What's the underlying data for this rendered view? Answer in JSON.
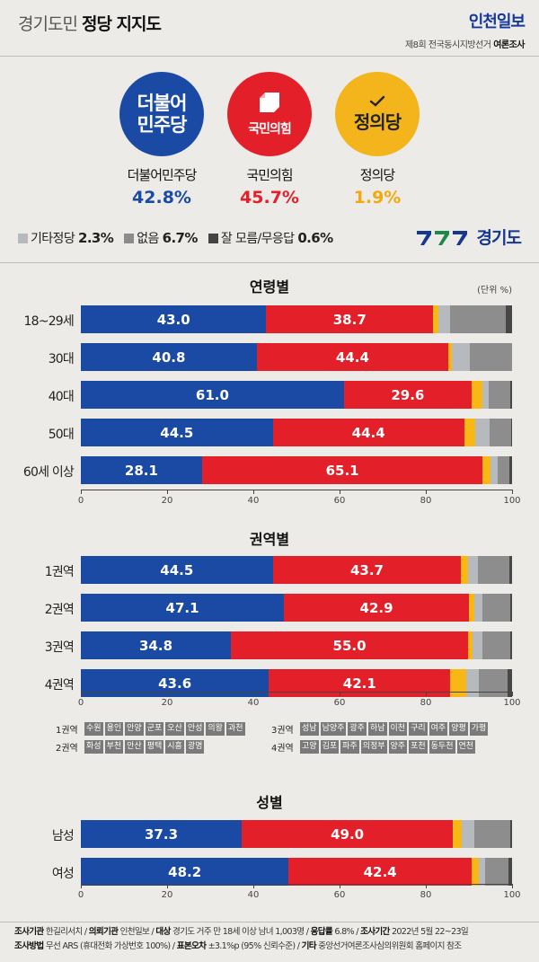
{
  "header": {
    "title_light": "경기도민",
    "title_bold": "정당 지지도",
    "brand": "인천일보",
    "brand_sub": "제8회 전국동시지방선거",
    "brand_sub_bold": "여론조사"
  },
  "parties": [
    {
      "name": "더불어민주당",
      "logo_line1": "더불어",
      "logo_line2": "민주당",
      "value": "42.8%",
      "color": "#1a4aa3"
    },
    {
      "name": "국민의힘",
      "logo_line1": "국민의힘",
      "value": "45.7%",
      "color": "#e3202a"
    },
    {
      "name": "정의당",
      "logo_line1": "정의당",
      "value": "1.9%",
      "color": "#f4b41c"
    }
  ],
  "others": [
    {
      "label": "기타정당",
      "value": "2.3%",
      "color": "#b6b9bd"
    },
    {
      "label": "없음",
      "value": "6.7%",
      "color": "#8c8c8c"
    },
    {
      "label": "잘 모름/무응답",
      "value": "0.6%",
      "color": "#444444"
    }
  ],
  "gg_logo": "경기도",
  "colors": {
    "dem": "#1a4aa3",
    "ppp": "#e3202a",
    "justice": "#f7b816",
    "etc": "#b6b9bd",
    "none": "#8d8d8d",
    "unknown": "#474747"
  },
  "chart_data": [
    {
      "type": "bar",
      "stacked": true,
      "orientation": "horizontal",
      "title": "연령별",
      "unit_label": "(단위 %)",
      "categories": [
        "18~29세",
        "30대",
        "40대",
        "50대",
        "60세 이상"
      ],
      "xlim": [
        0,
        100
      ],
      "xticks": [
        0,
        20,
        40,
        60,
        80,
        100
      ],
      "series": [
        {
          "name": "더불어민주당",
          "values": [
            43.0,
            40.8,
            61.0,
            44.5,
            28.1
          ]
        },
        {
          "name": "국민의힘",
          "values": [
            38.7,
            44.4,
            29.6,
            44.4,
            65.1
          ]
        },
        {
          "name": "정의당",
          "values": [
            1.2,
            0.9,
            2.5,
            2.6,
            1.9
          ]
        },
        {
          "name": "기타정당",
          "values": [
            2.8,
            4.2,
            1.5,
            3.2,
            1.5
          ]
        },
        {
          "name": "없음",
          "values": [
            12.9,
            9.7,
            5.0,
            5.0,
            2.7
          ]
        },
        {
          "name": "잘 모름/무응답",
          "values": [
            1.4,
            0.0,
            0.4,
            0.3,
            0.7
          ]
        }
      ]
    },
    {
      "type": "bar",
      "stacked": true,
      "orientation": "horizontal",
      "title": "권역별",
      "categories": [
        "1권역",
        "2권역",
        "3권역",
        "4권역"
      ],
      "xlim": [
        0,
        100
      ],
      "xticks": [
        0,
        20,
        40,
        60,
        80,
        100
      ],
      "series": [
        {
          "name": "더불어민주당",
          "values": [
            44.5,
            47.1,
            34.8,
            43.6
          ]
        },
        {
          "name": "국민의힘",
          "values": [
            43.7,
            42.9,
            55.0,
            42.1
          ]
        },
        {
          "name": "정의당",
          "values": [
            1.6,
            1.2,
            1.0,
            3.6
          ]
        },
        {
          "name": "기타정당",
          "values": [
            2.3,
            1.9,
            2.3,
            3.0
          ]
        },
        {
          "name": "없음",
          "values": [
            7.2,
            6.4,
            6.5,
            6.7
          ]
        },
        {
          "name": "잘 모름/무응답",
          "values": [
            0.7,
            0.5,
            0.4,
            1.0
          ]
        }
      ]
    },
    {
      "type": "bar",
      "stacked": true,
      "orientation": "horizontal",
      "title": "성별",
      "categories": [
        "남성",
        "여성"
      ],
      "xlim": [
        0,
        100
      ],
      "xticks": [
        0,
        20,
        40,
        60,
        80,
        100
      ],
      "series": [
        {
          "name": "더불어민주당",
          "values": [
            37.3,
            48.2
          ]
        },
        {
          "name": "국민의힘",
          "values": [
            49.0,
            42.4
          ]
        },
        {
          "name": "정의당",
          "values": [
            2.0,
            1.6
          ]
        },
        {
          "name": "기타정당",
          "values": [
            3.0,
            1.5
          ]
        },
        {
          "name": "없음",
          "values": [
            8.2,
            5.5
          ]
        },
        {
          "name": "잘 모름/무응답",
          "values": [
            0.5,
            0.8
          ]
        }
      ]
    }
  ],
  "regions": {
    "r1": {
      "label": "1권역",
      "cities": [
        "수원",
        "용인",
        "안양",
        "군포",
        "오산",
        "안성",
        "의왕",
        "과천"
      ]
    },
    "r2": {
      "label": "2권역",
      "cities": [
        "화성",
        "부천",
        "안산",
        "평택",
        "시흥",
        "광명"
      ]
    },
    "r3": {
      "label": "3권역",
      "cities": [
        "성남",
        "남양주",
        "광주",
        "하남",
        "이천",
        "구리",
        "여주",
        "양평",
        "가평"
      ]
    },
    "r4": {
      "label": "4권역",
      "cities": [
        "고양",
        "김포",
        "파주",
        "의정부",
        "양주",
        "포천",
        "동두천",
        "연천"
      ]
    }
  },
  "footer": {
    "line1": [
      {
        "k": "조사기관",
        "v": "한길리서치"
      },
      {
        "k": "의뢰기관",
        "v": "인천일보"
      },
      {
        "k": "대상",
        "v": "경기도 거주 만 18세 이상 남녀 1,003명"
      },
      {
        "k": "응답률",
        "v": "6.8%"
      },
      {
        "k": "조사기간",
        "v": "2022년 5월 22~23일"
      }
    ],
    "line2": [
      {
        "k": "조사방법",
        "v": "무선 ARS (휴대전화 가상번호 100%)"
      },
      {
        "k": "표본오차",
        "v": "±3.1%p (95% 신뢰수준)"
      },
      {
        "k": "기타",
        "v": "중앙선거여론조사심의위원회 홈페이지 참조"
      }
    ]
  }
}
